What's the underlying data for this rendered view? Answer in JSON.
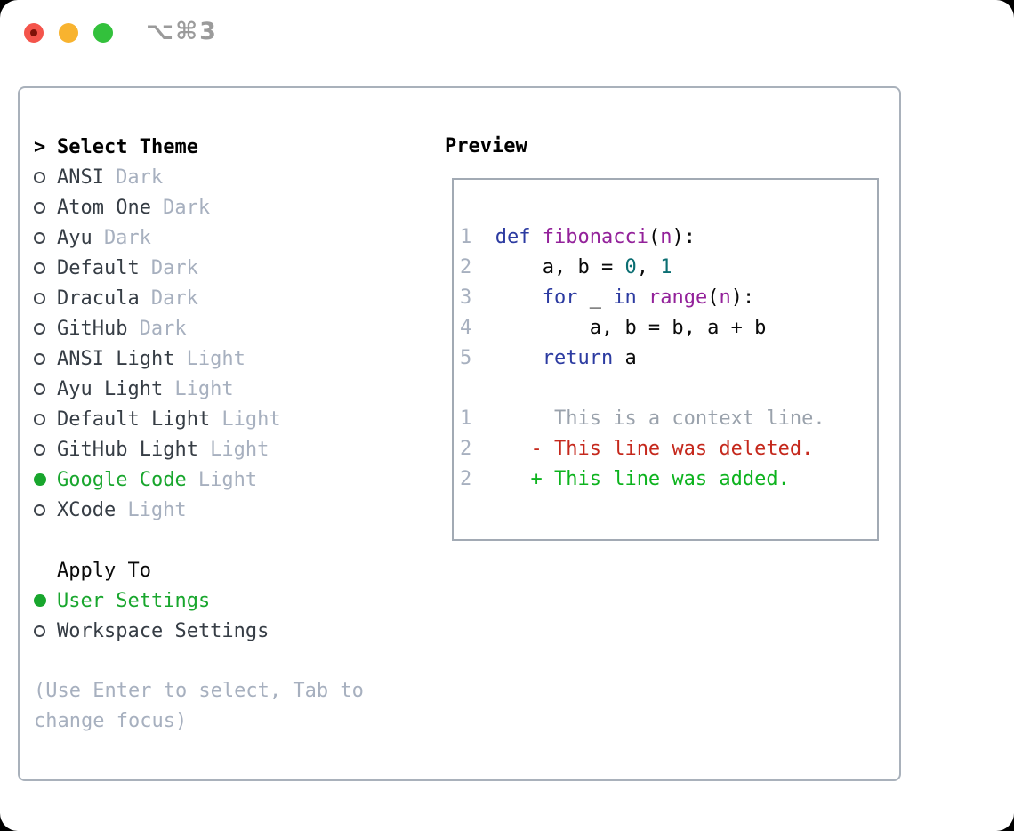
{
  "window": {
    "title": "⌥⌘3",
    "buttons": [
      "close",
      "minimize",
      "zoom"
    ]
  },
  "theme_list": {
    "prompt": ">",
    "header": "Select Theme",
    "items": [
      {
        "name": "ANSI",
        "variant": "Dark",
        "selected": false
      },
      {
        "name": "Atom One",
        "variant": "Dark",
        "selected": false
      },
      {
        "name": "Ayu",
        "variant": "Dark",
        "selected": false
      },
      {
        "name": "Default",
        "variant": "Dark",
        "selected": false
      },
      {
        "name": "Dracula",
        "variant": "Dark",
        "selected": false
      },
      {
        "name": "GitHub",
        "variant": "Dark",
        "selected": false
      },
      {
        "name": "ANSI Light",
        "variant": "Light",
        "selected": false
      },
      {
        "name": "Ayu Light",
        "variant": "Light",
        "selected": false
      },
      {
        "name": "Default Light",
        "variant": "Light",
        "selected": false
      },
      {
        "name": "GitHub Light",
        "variant": "Light",
        "selected": false
      },
      {
        "name": "Google Code",
        "variant": "Light",
        "selected": true
      },
      {
        "name": "XCode",
        "variant": "Light",
        "selected": false
      }
    ]
  },
  "apply_to": {
    "header": "Apply To",
    "options": [
      {
        "label": "User Settings",
        "selected": true
      },
      {
        "label": "Workspace Settings",
        "selected": false
      }
    ]
  },
  "help_text": [
    "(Use Enter to select, Tab to",
    "change focus)"
  ],
  "preview": {
    "header": "Preview",
    "code_lines": [
      {
        "tokens": [
          {
            "c": "lnum",
            "t": "1  "
          },
          {
            "c": "kwd",
            "t": "def"
          },
          {
            "c": "pln",
            "t": " "
          },
          {
            "c": "typ",
            "t": "fibonacci"
          },
          {
            "c": "pun",
            "t": "("
          },
          {
            "c": "typ",
            "t": "n"
          },
          {
            "c": "pun",
            "t": "):"
          }
        ]
      },
      {
        "tokens": [
          {
            "c": "lnum",
            "t": "2  "
          },
          {
            "c": "pln",
            "t": "    a, b = "
          },
          {
            "c": "lit",
            "t": "0"
          },
          {
            "c": "pln",
            "t": ", "
          },
          {
            "c": "lit",
            "t": "1"
          }
        ]
      },
      {
        "tokens": [
          {
            "c": "lnum",
            "t": "3  "
          },
          {
            "c": "pln",
            "t": "    "
          },
          {
            "c": "kwd",
            "t": "for"
          },
          {
            "c": "pln",
            "t": " _ "
          },
          {
            "c": "kwd",
            "t": "in"
          },
          {
            "c": "pln",
            "t": " "
          },
          {
            "c": "typ",
            "t": "range"
          },
          {
            "c": "pun",
            "t": "("
          },
          {
            "c": "typ",
            "t": "n"
          },
          {
            "c": "pun",
            "t": "):"
          }
        ]
      },
      {
        "tokens": [
          {
            "c": "lnum",
            "t": "4  "
          },
          {
            "c": "pln",
            "t": "        a, b = b, a + b"
          }
        ]
      },
      {
        "tokens": [
          {
            "c": "lnum",
            "t": "5  "
          },
          {
            "c": "pln",
            "t": "    "
          },
          {
            "c": "kwd",
            "t": "return"
          },
          {
            "c": "pln",
            "t": " a"
          }
        ]
      },
      {
        "tokens": []
      },
      {
        "tokens": [
          {
            "c": "lnum",
            "t": "1     "
          },
          {
            "c": "ctx",
            "t": "  This is a context line."
          }
        ]
      },
      {
        "tokens": [
          {
            "c": "lnum",
            "t": "2     "
          },
          {
            "c": "del",
            "t": "- This line was deleted."
          }
        ]
      },
      {
        "tokens": [
          {
            "c": "lnum",
            "t": "2     "
          },
          {
            "c": "add",
            "t": "+ This line was added."
          }
        ]
      }
    ]
  },
  "colors": {
    "selected_green": "#18a62d",
    "added_green": "#0db31e",
    "deleted_red": "#c5281c",
    "keyword_blue": "#2c3ba1",
    "type_purple": "#93219a",
    "literal_teal": "#0b6e72",
    "muted_gray": "#a7b0bf",
    "panel_border": "#a9b1bb"
  }
}
